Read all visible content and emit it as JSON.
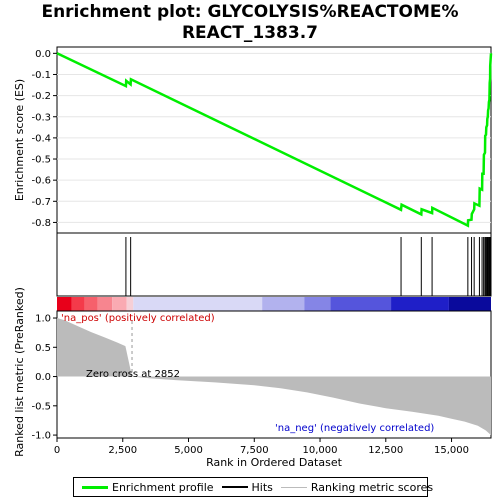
{
  "title_line1": "Enrichment plot: GLYCOLYSIS%REACTOME%",
  "title_line2": "REACT_1383.7",
  "chart_data": {
    "type": "line",
    "n_genes": 16500,
    "top_panel": {
      "ylabel": "Enrichment score (ES)",
      "ylim": [
        -0.85,
        0.03
      ],
      "yticks": [
        "0.0",
        "-0.1",
        "-0.2",
        "-0.3",
        "-0.4",
        "-0.5",
        "-0.6",
        "-0.7",
        "-0.8"
      ],
      "ytick_values": [
        0.0,
        -0.1,
        -0.2,
        -0.3,
        -0.4,
        -0.5,
        -0.6,
        -0.7,
        -0.8
      ],
      "line_color": "#00ee00",
      "series": {
        "name": "Enrichment profile",
        "x": [
          0,
          2620,
          2630,
          2800,
          2810,
          13080,
          13100,
          13850,
          13860,
          14260,
          14270,
          15620,
          15630,
          15760,
          15770,
          15860,
          15870,
          16060,
          16070,
          16160,
          16170,
          16220,
          16230,
          16270,
          16280,
          16310,
          16320,
          16350,
          16360,
          16380,
          16390,
          16410,
          16420,
          16440,
          16450,
          16465,
          16470,
          16500
        ],
        "y": [
          0.0,
          -0.155,
          -0.13,
          -0.147,
          -0.123,
          -0.74,
          -0.716,
          -0.762,
          -0.738,
          -0.756,
          -0.731,
          -0.815,
          -0.79,
          -0.787,
          -0.76,
          -0.738,
          -0.71,
          -0.721,
          -0.64,
          -0.645,
          -0.57,
          -0.57,
          -0.48,
          -0.47,
          -0.39,
          -0.385,
          -0.35,
          -0.34,
          -0.31,
          -0.3,
          -0.27,
          -0.26,
          -0.23,
          -0.22,
          -0.14,
          -0.12,
          -0.06,
          0.0
        ]
      }
    },
    "hits": [
      2620,
      2800,
      13080,
      13850,
      14260,
      15620,
      15760,
      15860,
      16060,
      16160,
      16220,
      16270,
      16310,
      16350,
      16380,
      16410,
      16440,
      16465
    ],
    "bottom_panel": {
      "ylabel": "Ranked list metric (PreRanked)",
      "xlabel": "Rank in Ordered Dataset",
      "ylim": [
        -1.05,
        1.12
      ],
      "yticks": [
        "1.0",
        "0.5",
        "0.0",
        "-0.5",
        "-1.0"
      ],
      "ytick_values": [
        1.0,
        0.5,
        0.0,
        -0.5,
        -1.0
      ],
      "xlim": [
        0,
        16500
      ],
      "xticks": [
        "0",
        "2,500",
        "5,000",
        "7,500",
        "10,000",
        "12,500",
        "15,000"
      ],
      "xtick_values": [
        0,
        2500,
        5000,
        7500,
        10000,
        12500,
        15000
      ],
      "zero_cross_label": "Zero cross at 2852",
      "zero_cross": 2852,
      "pos_label": "'na_pos' (positively correlated)",
      "neg_label": "'na_neg' (negatively correlated)",
      "metric_profile": {
        "x": [
          0,
          300,
          800,
          1300,
          1800,
          2300,
          2600,
          2852,
          3500,
          4500,
          6000,
          7500,
          8500,
          9500,
          10500,
          11500,
          12500,
          13500,
          14500,
          15000,
          15500,
          16000,
          16300,
          16500
        ],
        "y": [
          1.0,
          0.96,
          0.86,
          0.76,
          0.67,
          0.58,
          0.52,
          0.0,
          -0.03,
          -0.06,
          -0.1,
          -0.15,
          -0.2,
          -0.27,
          -0.36,
          -0.46,
          -0.54,
          -0.6,
          -0.67,
          -0.72,
          -0.77,
          -0.84,
          -0.92,
          -1.0
        ]
      }
    },
    "legend": [
      "Enrichment profile",
      "Hits",
      "Ranking metric scores"
    ]
  }
}
